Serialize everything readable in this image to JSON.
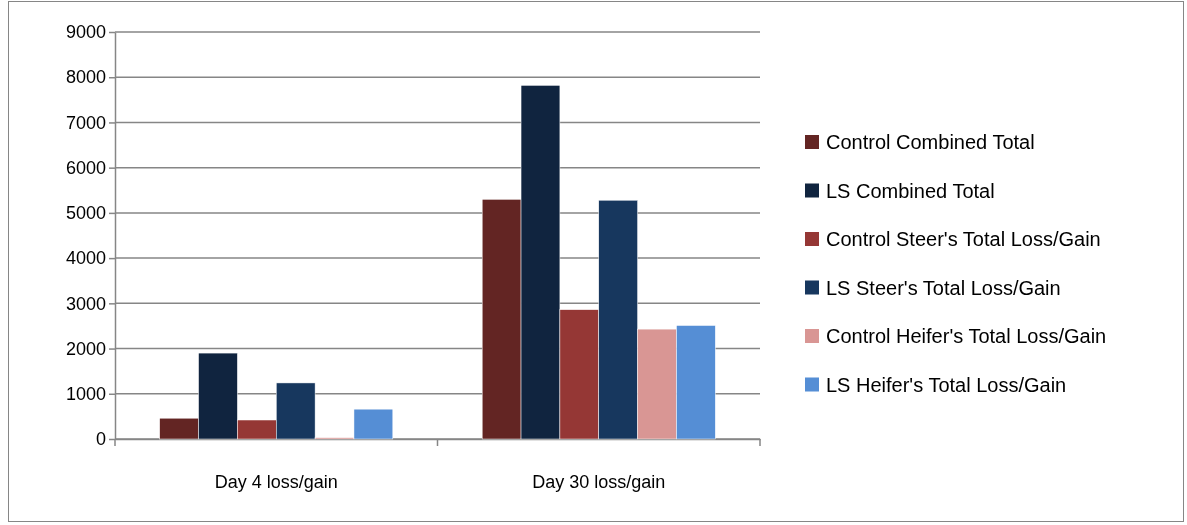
{
  "chart_data": {
    "type": "bar",
    "categories": [
      "Day 4 loss/gain",
      "Day 30 loss/gain"
    ],
    "series": [
      {
        "name": "Control Combined Total",
        "color": "#632523",
        "values": [
          460,
          5300
        ]
      },
      {
        "name": "LS Combined Total",
        "color": "#10243f",
        "values": [
          1900,
          7820
        ]
      },
      {
        "name": "Control Steer's Total Loss/Gain",
        "color": "#953735",
        "values": [
          420,
          2860
        ]
      },
      {
        "name": "LS Steer's Total Loss/Gain",
        "color": "#17375e",
        "values": [
          1240,
          5280
        ]
      },
      {
        "name": "Control Heifer's Total Loss/Gain",
        "color": "#d99694",
        "values": [
          30,
          2430
        ]
      },
      {
        "name": "LS Heifer's Total Loss/Gain",
        "color": "#558ed5",
        "values": [
          660,
          2510
        ]
      }
    ],
    "ylim": [
      0,
      9000
    ],
    "yticks": [
      0,
      1000,
      2000,
      3000,
      4000,
      5000,
      6000,
      7000,
      8000,
      9000
    ],
    "grid": "y",
    "legend": "right"
  }
}
